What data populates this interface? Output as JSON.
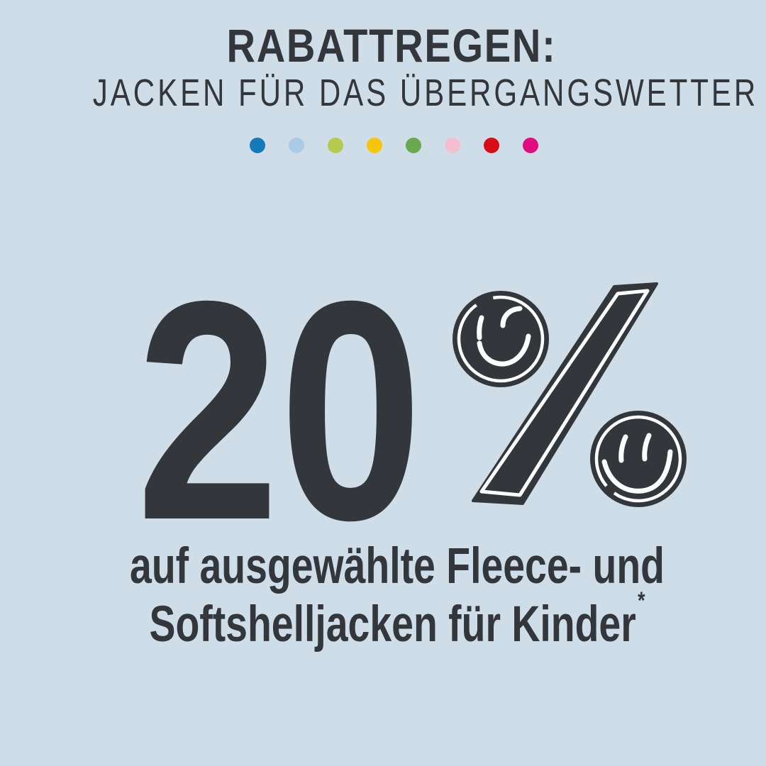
{
  "theme": {
    "background": "#cfdde9",
    "ink": "#33373c",
    "stroke-white": "#ffffff"
  },
  "header": {
    "title": "RABATTREGEN:",
    "subtitle": "JACKEN FÜR DAS ÜBERGANGSWETTER"
  },
  "decoration": {
    "dot_colors": [
      "#1879ba",
      "#a9cbe5",
      "#b5ca4f",
      "#f6c50a",
      "#69aa4f",
      "#f3bed0",
      "#d70c15",
      "#e30c7e"
    ]
  },
  "offer": {
    "discount_value": "20",
    "percent_symbol": "percent-sign-with-smiley-faces",
    "description_line1": "auf ausgewählte Fleece- und",
    "description_line2": "Softshelljacken für Kinder",
    "footnote_marker": "*"
  }
}
